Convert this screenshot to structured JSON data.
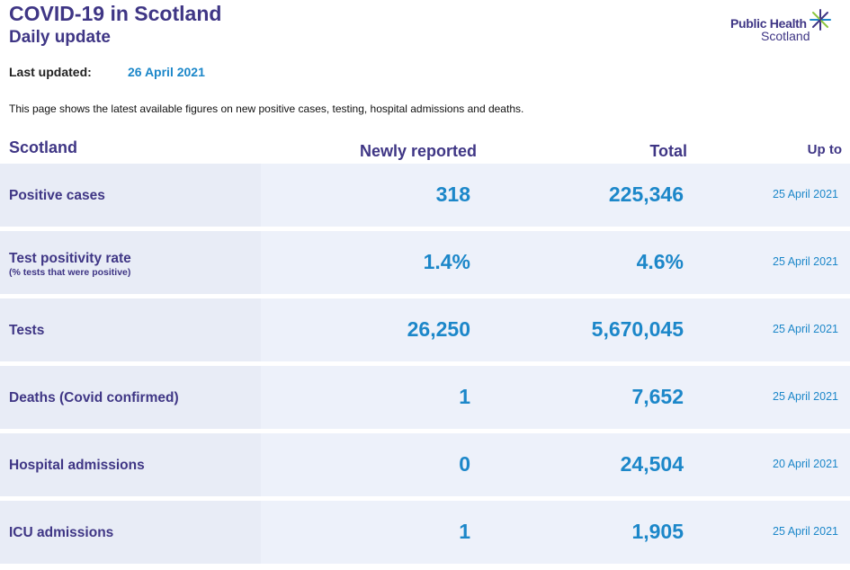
{
  "header": {
    "title": "COVID-19 in Scotland",
    "subtitle": "Daily update",
    "logo_line1": "Public Health",
    "logo_line2": "Scotland"
  },
  "updated": {
    "label": "Last updated:",
    "value": "26 April 2021"
  },
  "intro": "This page shows the latest available figures on new positive cases, testing, hospital admissions and deaths.",
  "table": {
    "headers": {
      "region": "Scotland",
      "new": "Newly reported",
      "total": "Total",
      "up_to": "Up to"
    },
    "rows": [
      {
        "label": "Positive cases",
        "sub": "",
        "new": "318",
        "total": "225,346",
        "date": "25 April 2021"
      },
      {
        "label": "Test positivity rate",
        "sub": "(% tests that were positive)",
        "new": "1.4%",
        "total": "4.6%",
        "date": "25 April 2021"
      },
      {
        "label": "Tests",
        "sub": "",
        "new": "26,250",
        "total": "5,670,045",
        "date": "25 April 2021"
      },
      {
        "label": "Deaths (Covid confirmed)",
        "sub": "",
        "new": "1",
        "total": "7,652",
        "date": "25 April 2021"
      },
      {
        "label": "Hospital admissions",
        "sub": "",
        "new": "0",
        "total": "24,504",
        "date": "20 April 2021"
      },
      {
        "label": "ICU admissions",
        "sub": "",
        "new": "1",
        "total": "1,905",
        "date": "25 April 2021"
      }
    ]
  },
  "colors": {
    "brand_purple": "#3f3685",
    "accent_blue": "#1c87c9",
    "row_bg": "#edf1fa",
    "label_bg": "#e8ecf6"
  }
}
